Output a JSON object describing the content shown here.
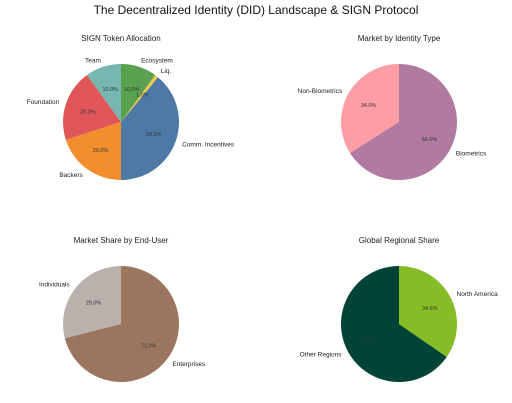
{
  "suptitle": "The Decentralized Identity (DID) Landscape & SIGN Protocol",
  "chart_data": [
    {
      "type": "pie",
      "title": "SIGN Token Allocation",
      "categories": [
        "Team",
        "Foundation",
        "Backers",
        "Comm. Incentives",
        "Liq.",
        "Ecosystem"
      ],
      "values": [
        10.0,
        20.0,
        20.0,
        39.0,
        1.0,
        10.0
      ],
      "pct_labels": [
        "10.0%",
        "20.0%",
        "20.0%",
        "39.0%",
        "1.0%",
        "10.0%"
      ],
      "colors": [
        "#76b7b2",
        "#e15759",
        "#f28e2b",
        "#4e79a7",
        "#edc948",
        "#59a14f"
      ],
      "start_angle_deg": 90
    },
    {
      "type": "pie",
      "title": "Market by Identity Type",
      "categories": [
        "Non-Biometrics",
        "Biometrics"
      ],
      "values": [
        34.0,
        66.0
      ],
      "pct_labels": [
        "34.0%",
        "66.0%"
      ],
      "colors": [
        "#ff9da7",
        "#b07aa1"
      ],
      "start_angle_deg": 90
    },
    {
      "type": "pie",
      "title": "Market Share by End-User",
      "categories": [
        "Individuals",
        "Enterprises"
      ],
      "values": [
        29.0,
        71.0
      ],
      "pct_labels": [
        "29.0%",
        "71.0%"
      ],
      "colors": [
        "#bab0ac",
        "#9c755f"
      ],
      "start_angle_deg": 90
    },
    {
      "type": "pie",
      "title": "Global Regional Share",
      "categories": [
        "Other Regions",
        "North America"
      ],
      "values": [
        65.4,
        34.6
      ],
      "pct_labels": [
        "65.4%",
        "34.6%"
      ],
      "colors": [
        "#004337",
        "#86bc25"
      ],
      "start_angle_deg": 90
    }
  ]
}
